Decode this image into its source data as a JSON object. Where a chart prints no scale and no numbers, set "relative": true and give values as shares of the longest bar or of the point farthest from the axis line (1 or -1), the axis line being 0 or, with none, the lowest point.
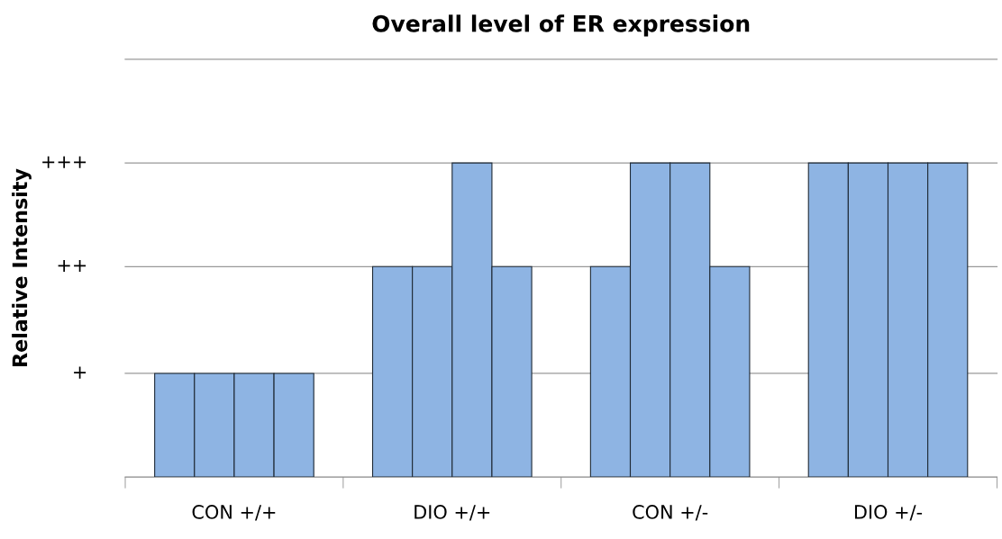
{
  "chart_data": {
    "type": "bar",
    "title": "Overall level of ER expression",
    "ylabel": "Relative Intensity",
    "relative": true,
    "categories": [
      "CON +/+",
      "DIO +/+",
      "CON +/-",
      "DIO +/-"
    ],
    "series": [
      {
        "color": "#8eb4e3",
        "values": [
          0.33,
          0.67,
          0.67,
          1
        ]
      },
      {
        "color": "#8eb4e3",
        "values": [
          0.33,
          0.67,
          1,
          1
        ]
      },
      {
        "color": "#8eb4e3",
        "values": [
          0.33,
          1,
          1,
          1
        ]
      },
      {
        "color": "#8eb4e3",
        "values": [
          0.33,
          0.67,
          0.67,
          1
        ]
      }
    ],
    "ref_lines": [
      {
        "axis": "y",
        "value": 0.33,
        "label": "+",
        "color": "#999999"
      },
      {
        "axis": "y",
        "value": 0.67,
        "label": "++",
        "color": "#999999"
      },
      {
        "axis": "y",
        "value": 1,
        "label": "+++",
        "color": "#999999"
      },
      {
        "axis": "y",
        "value": 1.33,
        "label": null,
        "color": "#999999"
      }
    ],
    "legend": false
  }
}
